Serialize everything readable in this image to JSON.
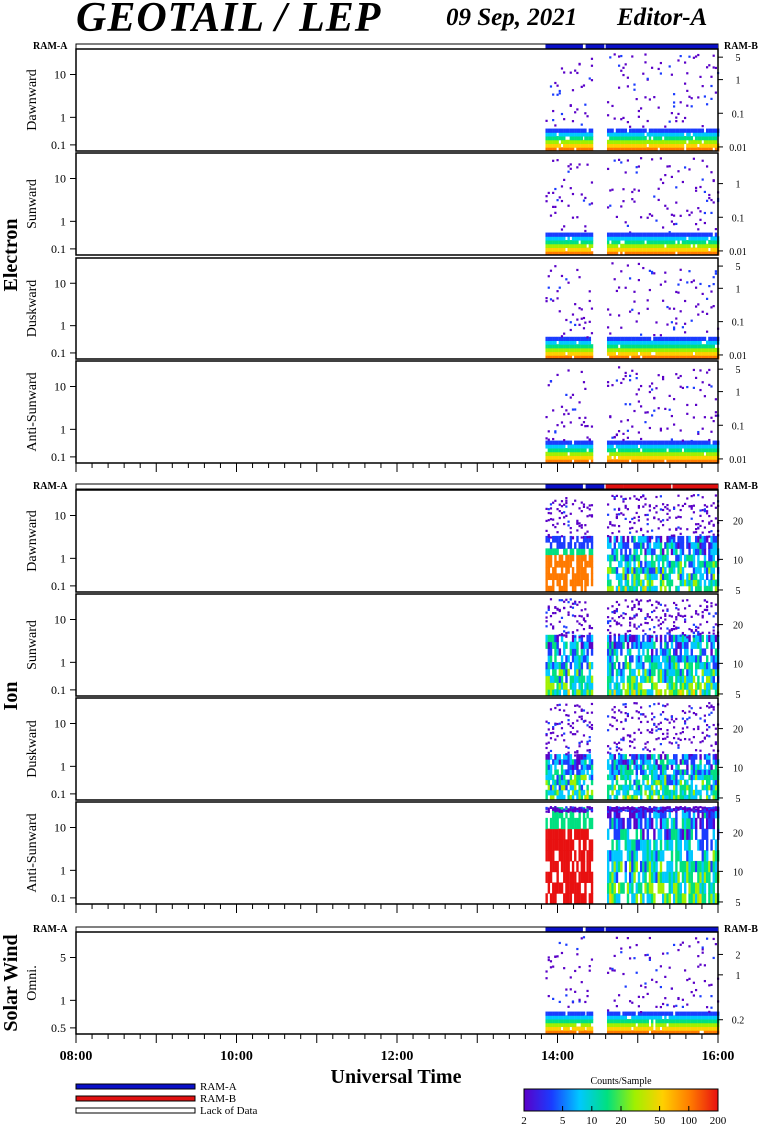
{
  "header": {
    "title": "GEOTAIL / LEP",
    "date": "09 Sep, 2021",
    "editor": "Editor-A"
  },
  "chart_data": {
    "type": "heatmap",
    "x_label": "Universal Time",
    "x_ticks": [
      "08:00",
      "10:00",
      "12:00",
      "14:00",
      "16:00"
    ],
    "ram_labels": {
      "left": "RAM-A",
      "right": "RAM-B"
    },
    "sections": [
      {
        "name": "Electron",
        "ram_bar": [
          {
            "start": "13:51",
            "end": "14:19",
            "mode": "RAM-A"
          },
          {
            "start": "14:21",
            "end": "14:35",
            "mode": "RAM-A"
          },
          {
            "start": "14:36",
            "end": "16:00",
            "mode": "RAM-A"
          }
        ],
        "panels": [
          {
            "label": "Dawnward",
            "left_ticks": [
              "10",
              "1",
              "0.1"
            ],
            "right_ticks": [
              "5",
              "1",
              "0.1",
              "0.01"
            ]
          },
          {
            "label": "Sunward",
            "left_ticks": [
              "10",
              "1",
              "0.1"
            ],
            "right_ticks": [
              "1",
              "0.1",
              "0.01"
            ]
          },
          {
            "label": "Duskward",
            "left_ticks": [
              "10",
              "1",
              "0.1"
            ],
            "right_ticks": [
              "5",
              "1",
              "0.1",
              "0.01"
            ]
          },
          {
            "label": "Anti-Sunward",
            "left_ticks": [
              "10",
              "1",
              "0.1"
            ],
            "right_ticks": [
              "5",
              "1",
              "0.1",
              "0.01"
            ]
          }
        ]
      },
      {
        "name": "Ion",
        "ram_bar": [
          {
            "start": "13:51",
            "end": "14:19",
            "mode": "RAM-A"
          },
          {
            "start": "14:21",
            "end": "14:35",
            "mode": "RAM-A"
          },
          {
            "start": "14:36",
            "end": "14:49",
            "mode": "RAM-B"
          },
          {
            "start": "14:49",
            "end": "15:25",
            "mode": "RAM-B"
          },
          {
            "start": "15:26",
            "end": "16:00",
            "mode": "RAM-B"
          }
        ],
        "panels": [
          {
            "label": "Dawnward",
            "left_ticks": [
              "10",
              "1",
              "0.1"
            ],
            "right_ticks": [
              "20",
              "10",
              "5"
            ]
          },
          {
            "label": "Sunward",
            "left_ticks": [
              "10",
              "1",
              "0.1"
            ],
            "right_ticks": [
              "20",
              "10",
              "5"
            ]
          },
          {
            "label": "Duskward",
            "left_ticks": [
              "10",
              "1",
              "0.1"
            ],
            "right_ticks": [
              "20",
              "10",
              "5"
            ]
          },
          {
            "label": "Anti-Sunward",
            "left_ticks": [
              "10",
              "1",
              "0.1"
            ],
            "right_ticks": [
              "20",
              "10",
              "5"
            ]
          }
        ]
      },
      {
        "name": "Solar Wind",
        "ram_bar": [
          {
            "start": "13:51",
            "end": "14:19",
            "mode": "RAM-A"
          },
          {
            "start": "14:21",
            "end": "14:35",
            "mode": "RAM-A"
          },
          {
            "start": "14:36",
            "end": "16:00",
            "mode": "RAM-A"
          }
        ],
        "panels": [
          {
            "label": "Omni.",
            "left_ticks": [
              "5",
              "1",
              "0.5"
            ],
            "right_ticks": [
              "2",
              "1",
              "0.2"
            ]
          }
        ]
      }
    ],
    "data_coverage": [
      {
        "start": "13:51",
        "end": "14:19"
      },
      {
        "start": "14:20",
        "end": "14:26"
      },
      {
        "start": "14:37",
        "end": "16:00"
      }
    ],
    "legend": [
      {
        "label": "RAM-A",
        "color": "#0a10c8"
      },
      {
        "label": "RAM-B",
        "color": "#e01010"
      },
      {
        "label": "Lack of Data",
        "color": "#ffffff"
      }
    ],
    "colorbar": {
      "label": "Counts/Sample",
      "ticks": [
        "2",
        "5",
        "10",
        "20",
        "50",
        "100",
        "200"
      ],
      "colors": [
        "#5a00c8",
        "#1a3cff",
        "#00c8ff",
        "#00e080",
        "#a0f000",
        "#ffd000",
        "#ff7a00",
        "#e81010"
      ]
    }
  }
}
